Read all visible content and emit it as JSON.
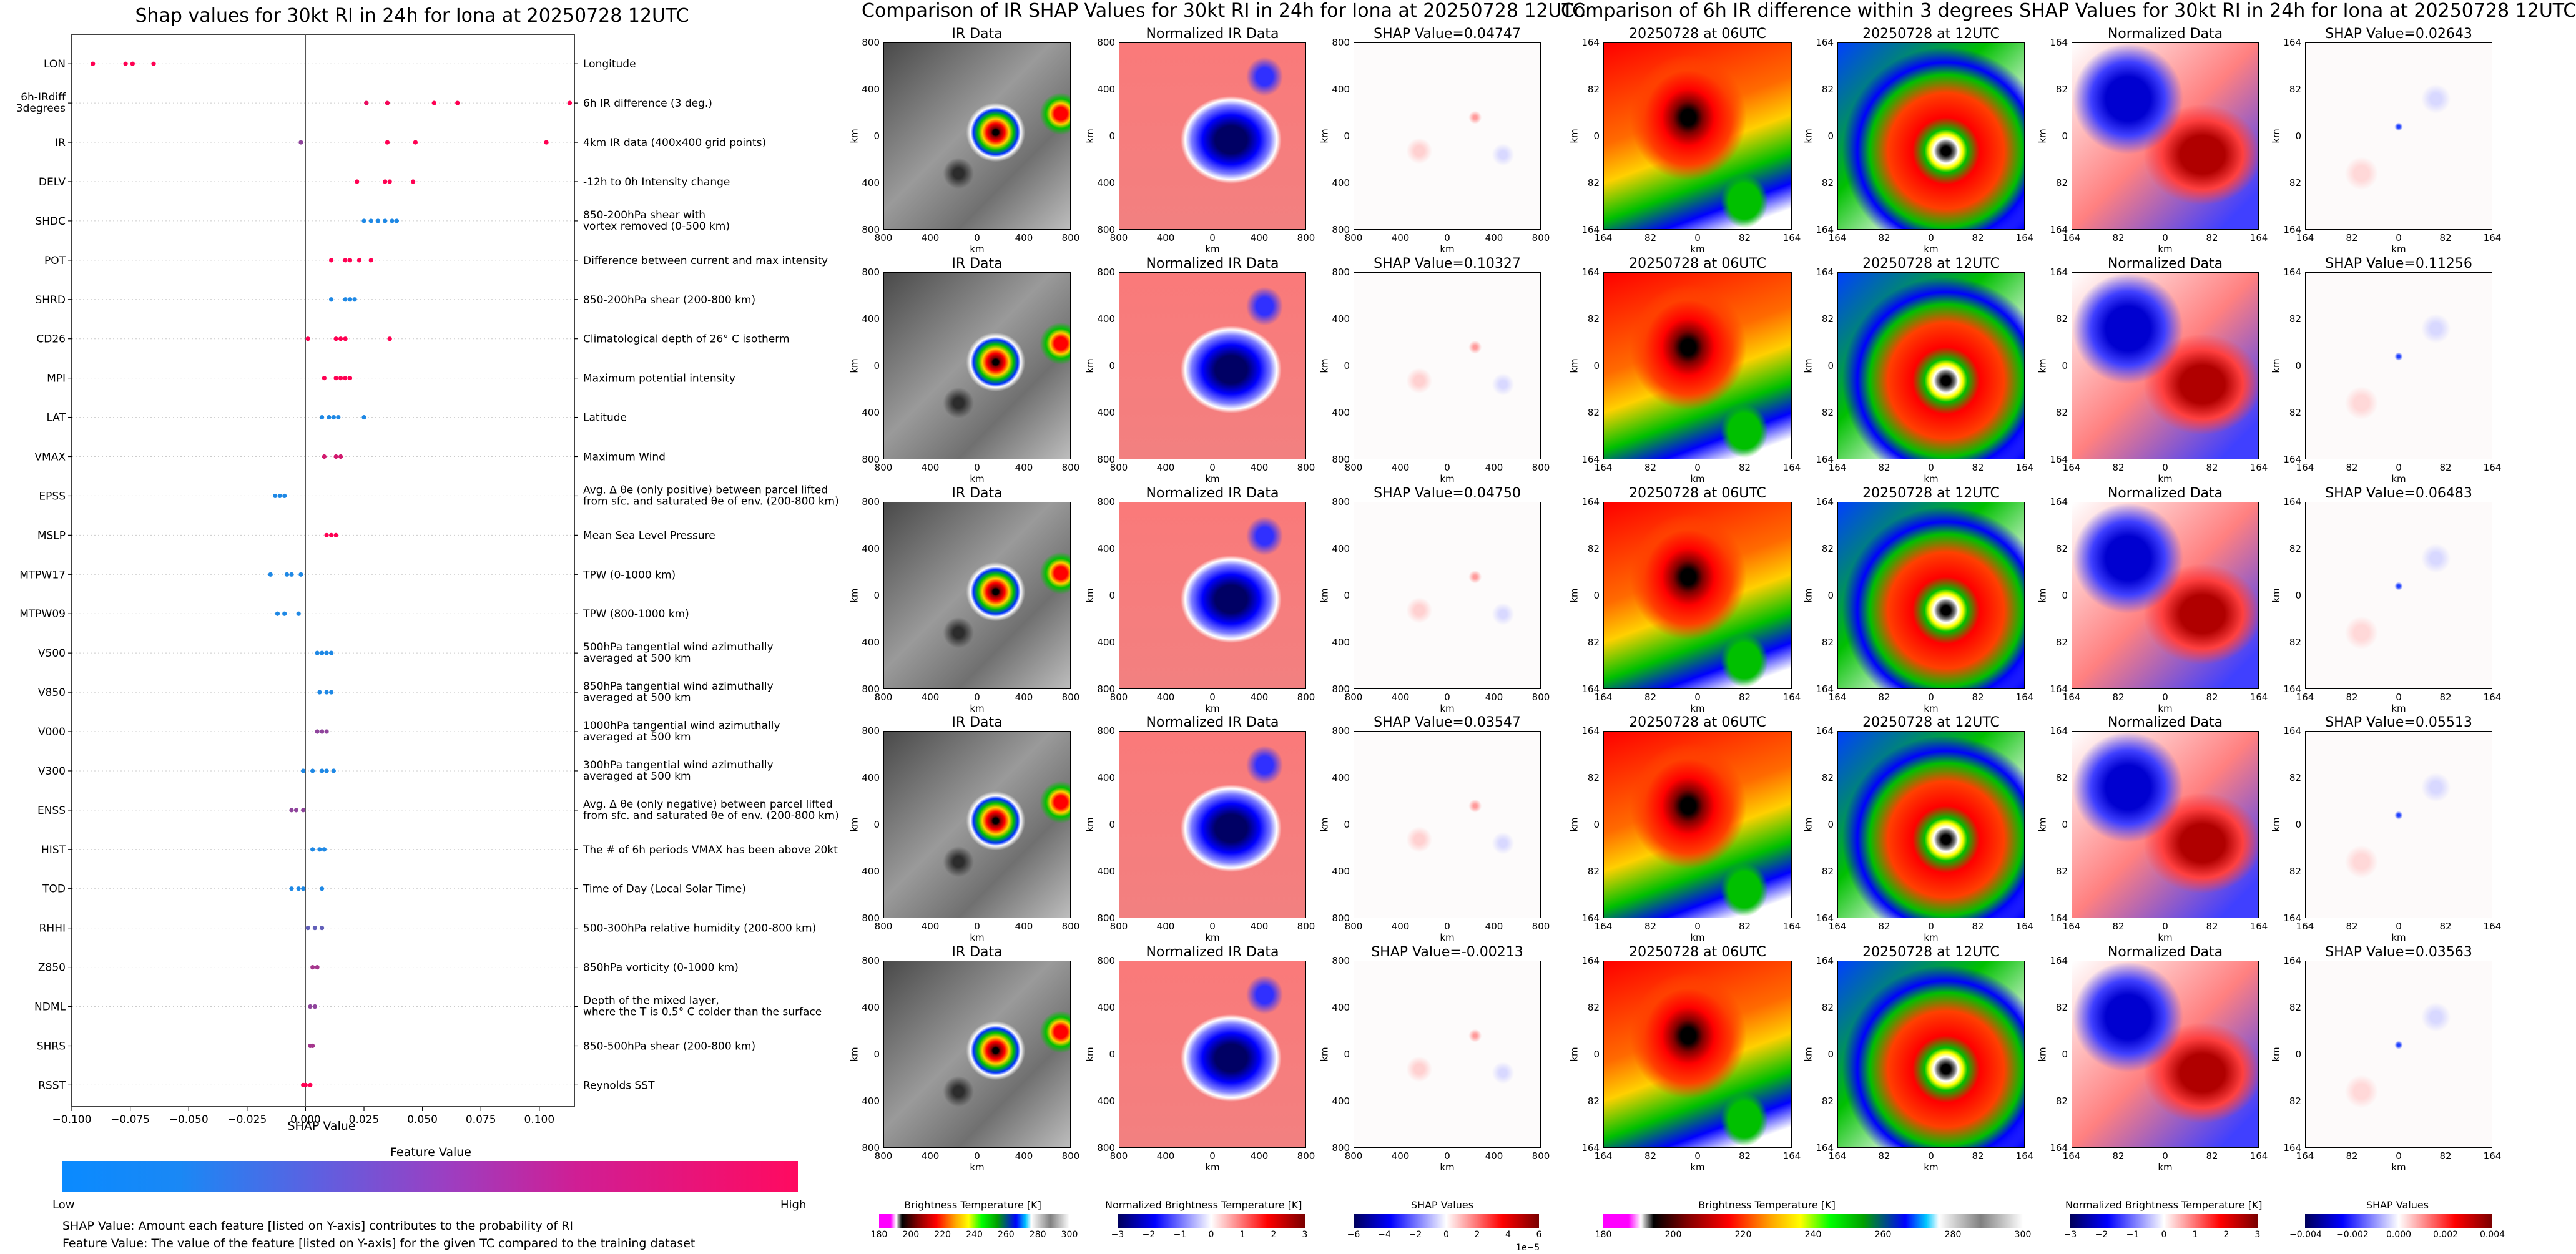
{
  "shap_panel": {
    "title": "Shap values for 30kt RI in 24h for Iona at 20250728 12UTC",
    "xlabel": "SHAP Value",
    "colorbar_title": "Feature Value",
    "colorbar_low": "Low",
    "colorbar_high": "High",
    "note_shap": "SHAP Value: Amount each feature [listed on Y-axis] contributes to the probability of RI",
    "note_feature": "Feature Value: The value of the feature [listed on Y-axis] for the given TC compared to the training dataset"
  },
  "ir_section": {
    "title": "Comparison of IR SHAP Values for 30kt RI in 24h for Iona at 20250728 12UTC",
    "col_ir": "IR Data",
    "col_norm": "Normalized IR Data",
    "shap_values": [
      "SHAP Value=0.04747",
      "SHAP Value=0.10327",
      "SHAP Value=0.04750",
      "SHAP Value=0.03547",
      "SHAP Value=-0.00213"
    ],
    "axis_label": "km",
    "yticks": [
      "800",
      "400",
      "0",
      "400",
      "800"
    ],
    "xticks": [
      "800",
      "400",
      "0",
      "400",
      "800"
    ],
    "cb_bt_title": "Brightness Temperature [K]",
    "cb_bt_ticks": [
      "180",
      "200",
      "220",
      "240",
      "260",
      "280",
      "300"
    ],
    "cb_norm_title": "Normalized Brightness Temperature [K]",
    "cb_norm_ticks": [
      "−3",
      "−2",
      "−1",
      "0",
      "1",
      "2",
      "3"
    ],
    "cb_shap_title": "SHAP Values",
    "cb_shap_ticks": [
      "−6",
      "−4",
      "−2",
      "0",
      "2",
      "4",
      "6"
    ],
    "cb_shap_exp": "1e−5"
  },
  "diff_section": {
    "title": "Comparison of 6h IR difference within 3 degrees SHAP Values for 30kt RI in 24h for Iona at 20250728 12UTC",
    "col_06": "20250728 at 06UTC",
    "col_12": "20250728 at 12UTC",
    "col_norm": "Normalized Data",
    "shap_values": [
      "SHAP Value=0.02643",
      "SHAP Value=0.11256",
      "SHAP Value=0.06483",
      "SHAP Value=0.05513",
      "SHAP Value=0.03563"
    ],
    "axis_label": "km",
    "yticks": [
      "164",
      "82",
      "0",
      "82",
      "164"
    ],
    "xticks": [
      "164",
      "82",
      "0",
      "82",
      "164"
    ],
    "cb_bt_title": "Brightness Temperature [K]",
    "cb_bt_ticks": [
      "180",
      "200",
      "220",
      "240",
      "260",
      "280",
      "300"
    ],
    "cb_norm_title": "Normalized Brightness Temperature [K]",
    "cb_norm_ticks": [
      "−3",
      "−2",
      "−1",
      "0",
      "1",
      "2",
      "3"
    ],
    "cb_shap_title": "SHAP Values",
    "cb_shap_ticks": [
      "−0.004",
      "−0.002",
      "0.000",
      "0.002",
      "0.004"
    ]
  },
  "colors": {
    "low": "#1e88e5",
    "high": "#ff0052",
    "axis": "#000000"
  },
  "chart_data": {
    "type": "scatter",
    "title": "Shap values for 30kt RI in 24h for Iona at 20250728 12UTC",
    "xlabel": "SHAP Value",
    "ylabel": "",
    "xlim": [
      -0.1,
      0.115
    ],
    "xticks": [
      "−0.100",
      "−0.075",
      "−0.050",
      "−0.025",
      "0.000",
      "0.025",
      "0.050",
      "0.075",
      "0.100"
    ],
    "xtick_values": [
      -0.1,
      -0.075,
      -0.05,
      -0.025,
      0,
      0.025,
      0.05,
      0.075,
      0.1
    ],
    "features": [
      {
        "name": "LON",
        "description": "Longitude",
        "points": [
          [
            -0.091,
            1
          ],
          [
            -0.077,
            1
          ],
          [
            -0.074,
            1
          ],
          [
            -0.065,
            1
          ]
        ]
      },
      {
        "name": "6h-IRdiff\n3degrees",
        "description": "6h IR difference (3 deg.)",
        "points": [
          [
            0.026,
            0.9
          ],
          [
            0.035,
            0.95
          ],
          [
            0.055,
            1
          ],
          [
            0.065,
            1
          ],
          [
            0.113,
            1
          ]
        ]
      },
      {
        "name": "IR",
        "description": "4km IR data (400x400 grid points)",
        "points": [
          [
            -0.002,
            0.5
          ],
          [
            0.035,
            1
          ],
          [
            0.047,
            1
          ],
          [
            0.103,
            1
          ]
        ]
      },
      {
        "name": "DELV",
        "description": "-12h to 0h Intensity change",
        "points": [
          [
            0.022,
            1
          ],
          [
            0.034,
            1
          ],
          [
            0.036,
            1
          ],
          [
            0.046,
            1
          ]
        ]
      },
      {
        "name": "SHDC",
        "description": "850-200hPa shear with\nvortex removed (0-500 km)",
        "points": [
          [
            0.025,
            0
          ],
          [
            0.028,
            0
          ],
          [
            0.031,
            0
          ],
          [
            0.034,
            0
          ],
          [
            0.037,
            0
          ],
          [
            0.039,
            0
          ]
        ]
      },
      {
        "name": "POT",
        "description": "Difference between current and max intensity",
        "points": [
          [
            0.011,
            1
          ],
          [
            0.017,
            1
          ],
          [
            0.019,
            1
          ],
          [
            0.023,
            1
          ],
          [
            0.028,
            1
          ]
        ]
      },
      {
        "name": "SHRD",
        "description": "850-200hPa shear (200-800 km)",
        "points": [
          [
            0.011,
            0
          ],
          [
            0.017,
            0
          ],
          [
            0.019,
            0
          ],
          [
            0.021,
            0
          ]
        ]
      },
      {
        "name": "CD26",
        "description": "Climatological depth of 26° C isotherm",
        "points": [
          [
            0.001,
            1
          ],
          [
            0.013,
            1
          ],
          [
            0.015,
            1
          ],
          [
            0.017,
            1
          ],
          [
            0.036,
            1
          ]
        ]
      },
      {
        "name": "MPI",
        "description": "Maximum potential intensity",
        "points": [
          [
            0.008,
            1
          ],
          [
            0.013,
            1
          ],
          [
            0.015,
            1
          ],
          [
            0.017,
            1
          ],
          [
            0.019,
            1
          ]
        ]
      },
      {
        "name": "LAT",
        "description": "Latitude",
        "points": [
          [
            0.007,
            0
          ],
          [
            0.01,
            0
          ],
          [
            0.012,
            0
          ],
          [
            0.014,
            0
          ],
          [
            0.025,
            0
          ]
        ]
      },
      {
        "name": "VMAX",
        "description": "Maximum Wind",
        "points": [
          [
            0.008,
            0.8
          ],
          [
            0.013,
            0.8
          ],
          [
            0.015,
            0.8
          ]
        ]
      },
      {
        "name": "EPSS",
        "description": "Avg. Δ θe (only positive) between parcel lifted\nfrom sfc. and saturated θe of env. (200-800 km)",
        "points": [
          [
            -0.013,
            0
          ],
          [
            -0.011,
            0
          ],
          [
            -0.009,
            0
          ]
        ]
      },
      {
        "name": "MSLP",
        "description": "Mean Sea Level Pressure",
        "points": [
          [
            0.009,
            1
          ],
          [
            0.011,
            1
          ],
          [
            0.013,
            1
          ]
        ]
      },
      {
        "name": "MTPW17",
        "description": "TPW (0-1000 km)",
        "points": [
          [
            -0.015,
            0
          ],
          [
            -0.008,
            0
          ],
          [
            -0.006,
            0
          ],
          [
            -0.002,
            0
          ]
        ]
      },
      {
        "name": "MTPW09",
        "description": "TPW (800-1000 km)",
        "points": [
          [
            -0.012,
            0
          ],
          [
            -0.009,
            0
          ],
          [
            -0.003,
            0
          ]
        ]
      },
      {
        "name": "V500",
        "description": "500hPa tangential wind azimuthally\naveraged at 500 km",
        "points": [
          [
            0.005,
            0
          ],
          [
            0.007,
            0
          ],
          [
            0.009,
            0
          ],
          [
            0.011,
            0
          ]
        ]
      },
      {
        "name": "V850",
        "description": "850hPa tangential wind azimuthally\naveraged at 500 km",
        "points": [
          [
            0.006,
            0
          ],
          [
            0.009,
            0
          ],
          [
            0.011,
            0
          ]
        ]
      },
      {
        "name": "V000",
        "description": "1000hPa tangential wind azimuthally\naveraged at 500 km",
        "points": [
          [
            0.005,
            0.5
          ],
          [
            0.007,
            0.5
          ],
          [
            0.009,
            0.5
          ]
        ]
      },
      {
        "name": "V300",
        "description": "300hPa tangential wind azimuthally\naveraged at 500 km",
        "points": [
          [
            -0.001,
            0
          ],
          [
            0.003,
            0
          ],
          [
            0.007,
            0
          ],
          [
            0.009,
            0
          ],
          [
            0.012,
            0
          ]
        ]
      },
      {
        "name": "ENSS",
        "description": "Avg. Δ θe (only negative) between parcel lifted\nfrom sfc. and saturated θe of env. (200-800 km)",
        "points": [
          [
            -0.006,
            0.5
          ],
          [
            -0.004,
            0.5
          ],
          [
            -0.001,
            0.5
          ]
        ]
      },
      {
        "name": "HIST",
        "description": "The # of 6h periods VMAX has been above 20kt",
        "points": [
          [
            0.003,
            0
          ],
          [
            0.006,
            0
          ],
          [
            0.008,
            0
          ]
        ]
      },
      {
        "name": "TOD",
        "description": "Time of Day (Local Solar Time)",
        "points": [
          [
            -0.006,
            0
          ],
          [
            -0.003,
            0
          ],
          [
            -0.001,
            0
          ],
          [
            0.007,
            0
          ]
        ]
      },
      {
        "name": "RHHI",
        "description": "500-300hPa relative humidity (200-800 km)",
        "points": [
          [
            0.001,
            0.3
          ],
          [
            0.004,
            0.3
          ],
          [
            0.007,
            0.3
          ]
        ]
      },
      {
        "name": "Z850",
        "description": "850hPa vorticity (0-1000 km)",
        "points": [
          [
            0.003,
            0.6
          ],
          [
            0.005,
            0.6
          ]
        ]
      },
      {
        "name": "NDML",
        "description": "Depth of the mixed layer,\nwhere the T is 0.5° C colder than the surface",
        "points": [
          [
            0.002,
            0.5
          ],
          [
            0.004,
            0.5
          ]
        ]
      },
      {
        "name": "SHRS",
        "description": "850-500hPa shear (200-800 km)",
        "points": [
          [
            0.002,
            0.6
          ],
          [
            0.003,
            0.6
          ]
        ]
      },
      {
        "name": "RSST",
        "description": "Reynolds SST",
        "points": [
          [
            -0.001,
            1
          ],
          [
            0.0,
            1
          ],
          [
            0.002,
            1
          ]
        ]
      }
    ]
  }
}
